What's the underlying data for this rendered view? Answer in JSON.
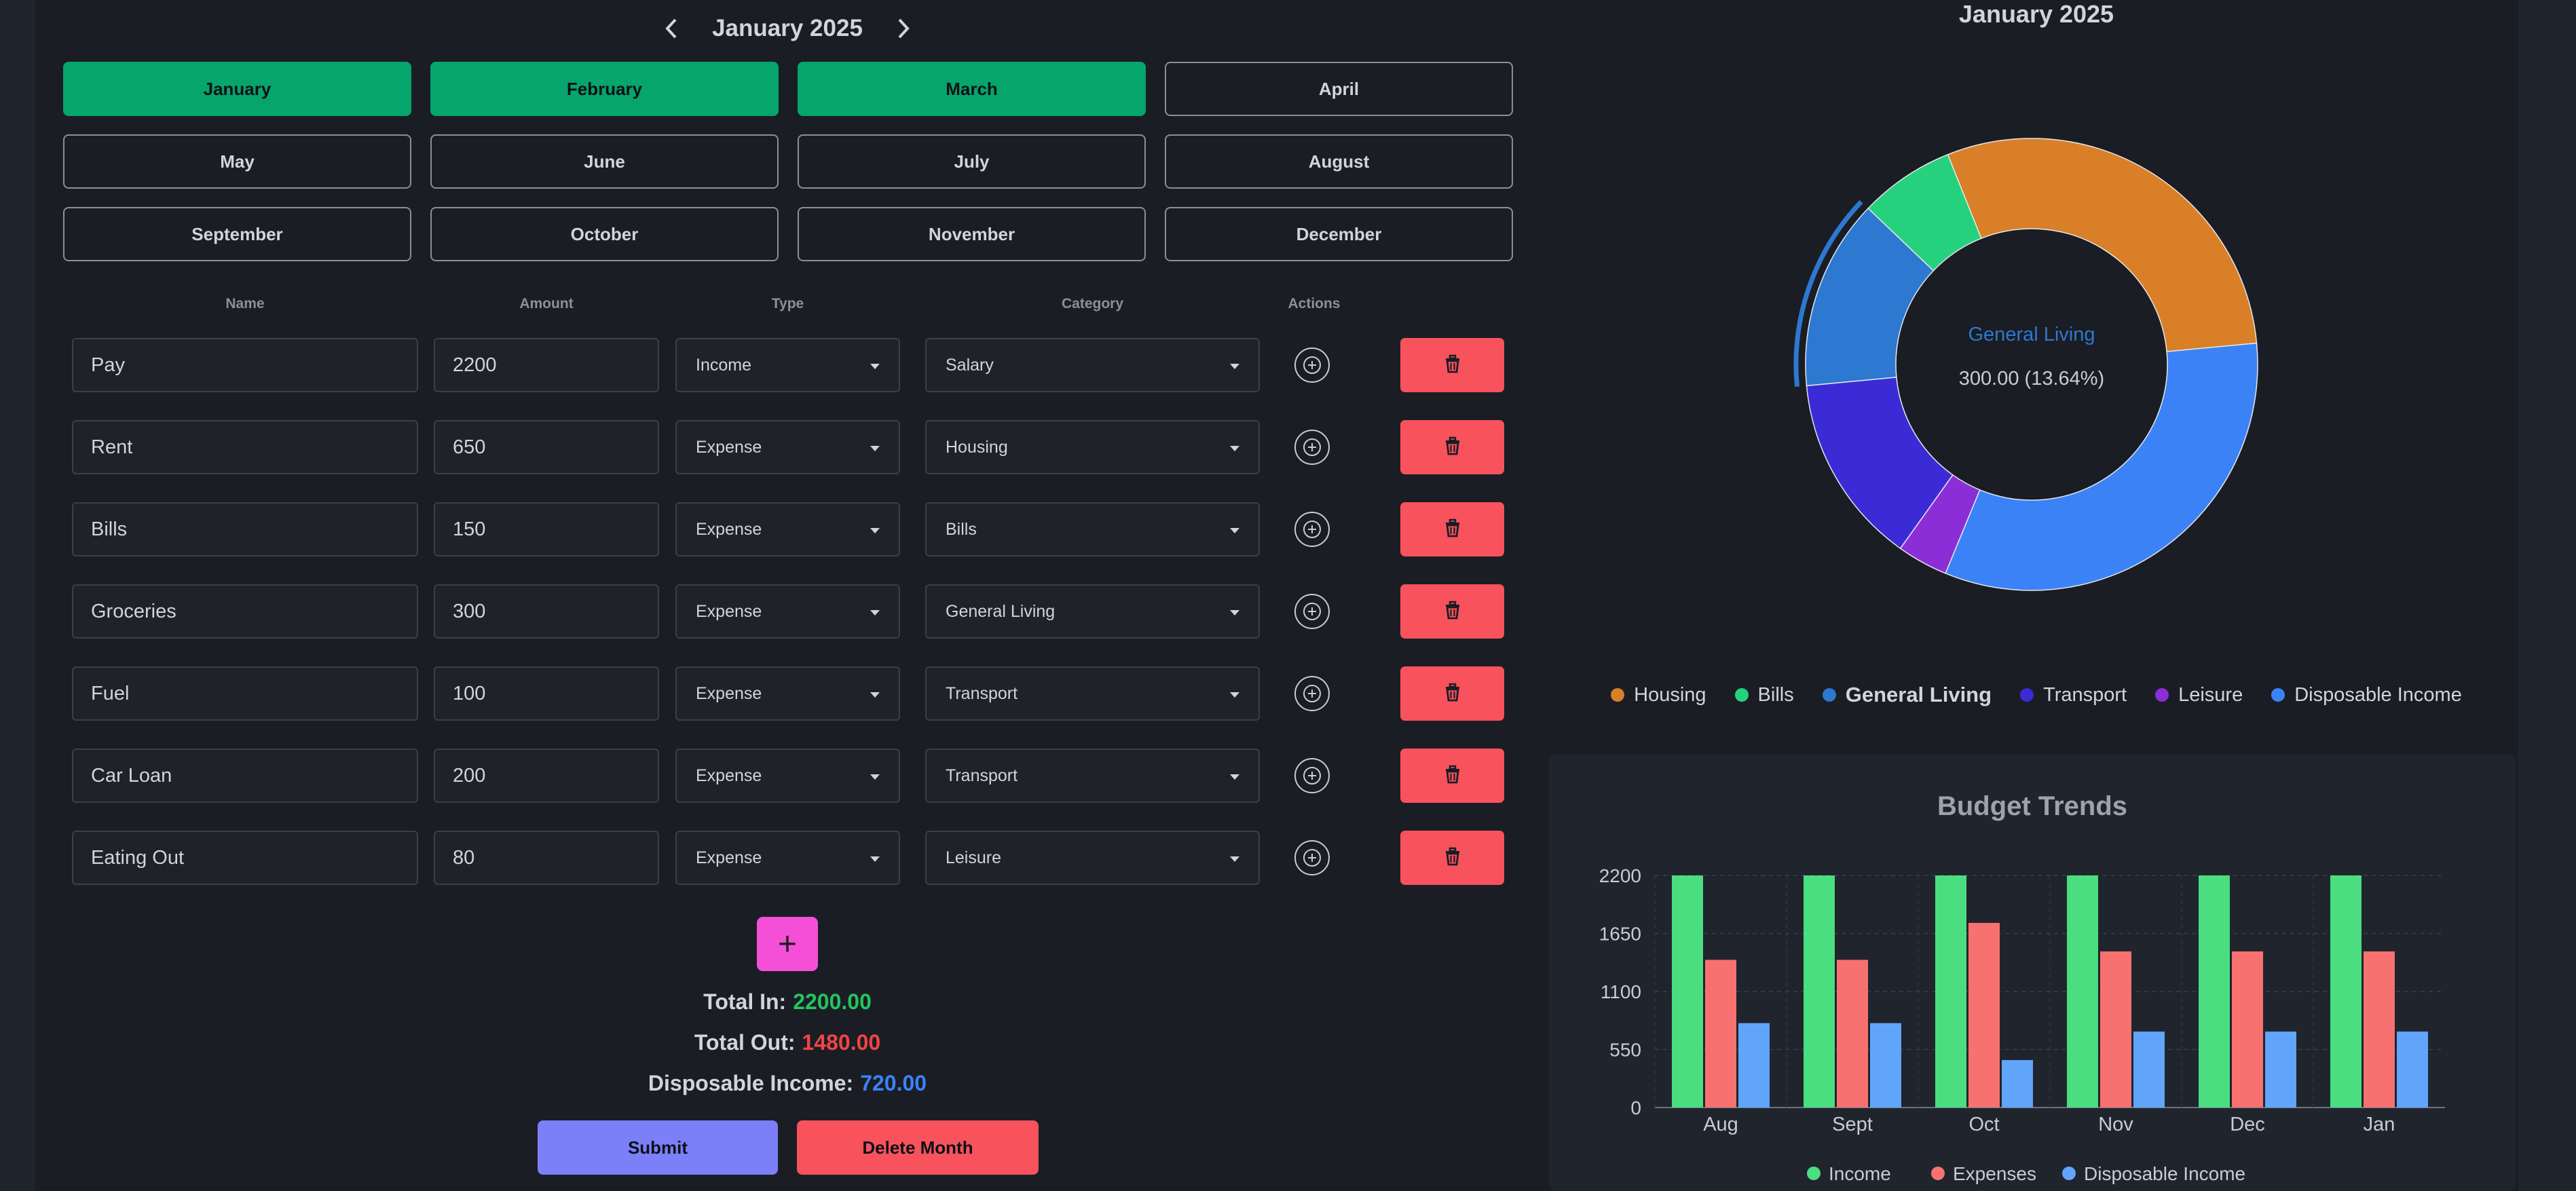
{
  "nav": {
    "title": "January 2025",
    "prev_icon": "chevron-left-icon",
    "next_icon": "chevron-right-icon"
  },
  "months": [
    {
      "label": "January",
      "active": true
    },
    {
      "label": "February",
      "active": true
    },
    {
      "label": "March",
      "active": true
    },
    {
      "label": "April",
      "active": false
    },
    {
      "label": "May",
      "active": false
    },
    {
      "label": "June",
      "active": false
    },
    {
      "label": "July",
      "active": false
    },
    {
      "label": "August",
      "active": false
    },
    {
      "label": "September",
      "active": false
    },
    {
      "label": "October",
      "active": false
    },
    {
      "label": "November",
      "active": false
    },
    {
      "label": "December",
      "active": false
    }
  ],
  "table": {
    "headers": {
      "name": "Name",
      "amount": "Amount",
      "type": "Type",
      "category": "Category",
      "actions": "Actions"
    },
    "rows": [
      {
        "name": "Pay",
        "amount": "2200",
        "type": "Income",
        "category": "Salary"
      },
      {
        "name": "Rent",
        "amount": "650",
        "type": "Expense",
        "category": "Housing"
      },
      {
        "name": "Bills",
        "amount": "150",
        "type": "Expense",
        "category": "Bills"
      },
      {
        "name": "Groceries",
        "amount": "300",
        "type": "Expense",
        "category": "General Living"
      },
      {
        "name": "Fuel",
        "amount": "100",
        "type": "Expense",
        "category": "Transport"
      },
      {
        "name": "Car Loan",
        "amount": "200",
        "type": "Expense",
        "category": "Transport"
      },
      {
        "name": "Eating Out",
        "amount": "80",
        "type": "Expense",
        "category": "Leisure"
      }
    ]
  },
  "add_row": {
    "label": "+"
  },
  "totals": {
    "in_label": "Total In:",
    "in_value": "2200.00",
    "in_color": "#22c55e",
    "out_label": "Total Out:",
    "out_value": "1480.00",
    "out_color": "#ef4444",
    "disp_label": "Disposable Income:",
    "disp_value": "720.00",
    "disp_color": "#3b82f6"
  },
  "buttons": {
    "submit": "Submit",
    "delete_month": "Delete Month"
  },
  "donut": {
    "title": "January 2025",
    "center_label": "General Living",
    "center_value": "300.00 (13.64%)"
  },
  "trends": {
    "title": "Budget Trends"
  },
  "chart_data": [
    {
      "type": "pie",
      "title": "January 2025",
      "categories": [
        "Housing",
        "Bills",
        "General Living",
        "Transport",
        "Leisure",
        "Disposable Income"
      ],
      "values": [
        650,
        150,
        300,
        300,
        80,
        720
      ],
      "colors": [
        "#d97f27",
        "#26d17e",
        "#2d78d0",
        "#3a2bd6",
        "#8b2ed8",
        "#3b82f6"
      ],
      "highlighted": "General Living"
    },
    {
      "type": "bar",
      "title": "Budget Trends",
      "categories": [
        "Aug",
        "Sept",
        "Oct",
        "Nov",
        "Dec",
        "Jan"
      ],
      "series": [
        {
          "name": "Income",
          "values": [
            2200,
            2200,
            2200,
            2200,
            2200,
            2200
          ],
          "color": "#4ade80"
        },
        {
          "name": "Expenses",
          "values": [
            1400,
            1400,
            1750,
            1480,
            1480,
            1480
          ],
          "color": "#f87171"
        },
        {
          "name": "Disposable Income",
          "values": [
            800,
            800,
            450,
            720,
            720,
            720
          ],
          "color": "#60a5fa"
        }
      ],
      "yticks": [
        0,
        550,
        1100,
        1650,
        2200
      ],
      "ylim": [
        0,
        2200
      ],
      "legend": "bottom"
    }
  ]
}
